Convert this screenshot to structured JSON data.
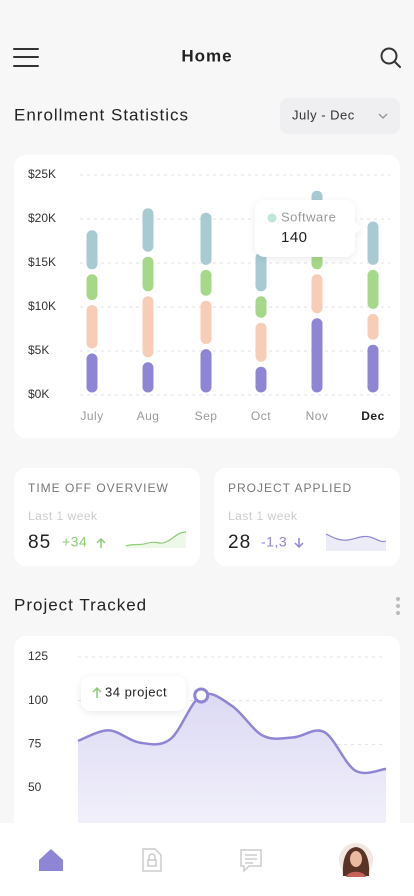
{
  "header": {
    "title": "Home"
  },
  "enrollment": {
    "title": "Enrollment Statistics",
    "range": "July - Dec",
    "tooltip": {
      "label": "Software",
      "value": "140"
    }
  },
  "cards": [
    {
      "title": "TIME OFF OVERVIEW",
      "period": "Last 1 week",
      "value": "85",
      "change": "+34"
    },
    {
      "title": "PROJECT APPLIED",
      "period": "Last 1 week",
      "value": "28",
      "change": "-1,3"
    }
  ],
  "projects": {
    "title": "Project Tracked",
    "annotation": "34 project"
  },
  "chart_data": [
    {
      "type": "bar",
      "stacked": true,
      "categories": [
        "July",
        "Aug",
        "Sep",
        "Oct",
        "Nov",
        "Dec"
      ],
      "series": [
        {
          "color": "#8e86d4",
          "values": [
            5000,
            4000,
            5500,
            3500,
            9000,
            6000
          ]
        },
        {
          "color": "#f8cdb8",
          "values": [
            5500,
            7500,
            5500,
            5000,
            5000,
            3500
          ]
        },
        {
          "color": "#a6d88a",
          "values": [
            3500,
            4500,
            3500,
            3000,
            2500,
            5000
          ]
        },
        {
          "color": "#a8cad3",
          "values": [
            5000,
            5500,
            6500,
            5000,
            7000,
            5500
          ]
        }
      ],
      "ylim": [
        0,
        25000
      ],
      "yticks": [
        {
          "value": 0,
          "label": "$0K"
        },
        {
          "value": 5000,
          "label": "$5K"
        },
        {
          "value": 10000,
          "label": "$10K"
        },
        {
          "value": 15000,
          "label": "$15K"
        },
        {
          "value": 20000,
          "label": "$20K"
        },
        {
          "value": 25000,
          "label": "$25K"
        }
      ],
      "grid": true
    },
    {
      "type": "area",
      "color": "#8e86d4",
      "values": [
        77,
        83,
        76,
        78,
        103,
        97,
        80,
        79,
        82,
        60,
        61
      ],
      "ylim": [
        30,
        125
      ],
      "yticks": [
        50,
        75,
        100,
        125
      ],
      "grid": true
    }
  ]
}
